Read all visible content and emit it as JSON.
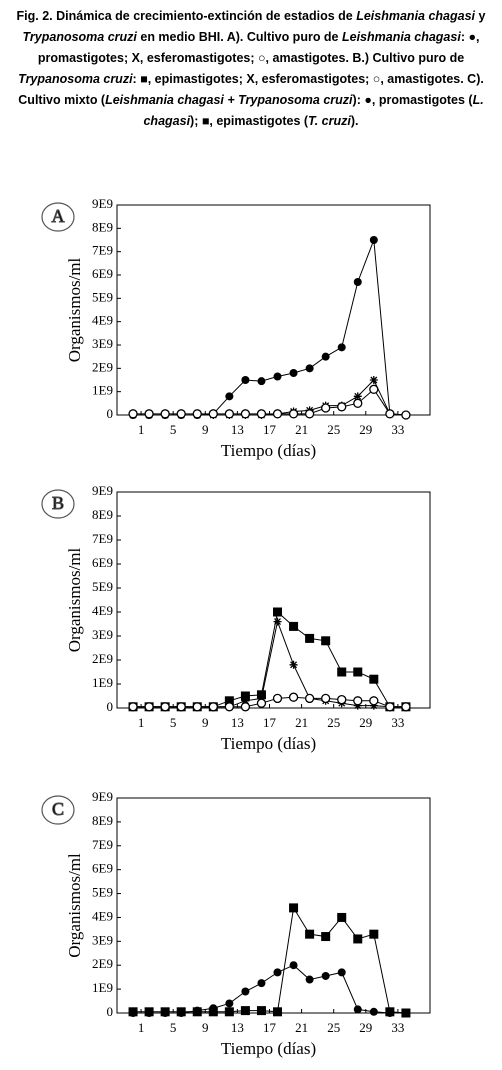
{
  "caption_parts": [
    {
      "text": "Fig. 2. Dinámica de crecimiento-extinción de estadios de ",
      "italic": false
    },
    {
      "text": "Leishmania chagasi",
      "italic": true
    },
    {
      "text": " y ",
      "italic": false
    },
    {
      "text": "Trypanosoma cruzi",
      "italic": true
    },
    {
      "text": " en medio BHI. A). Cultivo puro de ",
      "italic": false
    },
    {
      "text": "Leishmania chagasi",
      "italic": true
    },
    {
      "text": ": ●, promastigotes; X, esferomastigotes; ○, amastigotes. B.) Cultivo puro de ",
      "italic": false
    },
    {
      "text": "Trypanosoma cruzi",
      "italic": true
    },
    {
      "text": ": ■, epimastigotes; X, esferomastigotes; ○, amastigotes. C). Cultivo mixto (",
      "italic": false
    },
    {
      "text": "Leishmania chagasi + Trypanosoma cruzi",
      "italic": true
    },
    {
      "text": "): ●, promastigotes (",
      "italic": false
    },
    {
      "text": "L. chagasi",
      "italic": true
    },
    {
      "text": "); ■, epimastigotes (",
      "italic": false
    },
    {
      "text": "T. cruzi",
      "italic": true
    },
    {
      "text": ").",
      "italic": false
    }
  ],
  "chart_data": [
    {
      "type": "line",
      "panel": "A",
      "xlabel": "Tiempo (días)",
      "ylabel": "Organismos/ml",
      "x": [
        0,
        2,
        4,
        6,
        8,
        10,
        12,
        14,
        16,
        18,
        20,
        22,
        24,
        26,
        28,
        30,
        32,
        34
      ],
      "xlim": [
        -2,
        37
      ],
      "xticks": [
        1,
        5,
        9,
        13,
        17,
        21,
        25,
        29,
        33
      ],
      "ylim": [
        0,
        9000000000.0
      ],
      "yticks": [
        0,
        {
          "value": 1000000000.0,
          "label": "1E9"
        },
        {
          "value": 2000000000.0,
          "label": "2E9"
        },
        {
          "value": 3000000000.0,
          "label": "3E9"
        },
        {
          "value": 4000000000.0,
          "label": "4E9"
        },
        {
          "value": 5000000000.0,
          "label": "5E9"
        },
        {
          "value": 6000000000.0,
          "label": "6E9"
        },
        {
          "value": 7000000000.0,
          "label": "7E9"
        },
        {
          "value": 8000000000.0,
          "label": "8E9"
        },
        {
          "value": 9000000000.0,
          "label": "9E9"
        }
      ],
      "series": [
        {
          "name": "promastigotes",
          "marker": "filled-circle",
          "color": "#000000",
          "values": [
            0,
            0,
            0,
            0,
            0,
            50000000.0,
            800000000.0,
            1500000000.0,
            1450000000.0,
            1650000000.0,
            1800000000.0,
            2000000000.0,
            2500000000.0,
            2900000000.0,
            5700000000.0,
            7500000000.0,
            50000000.0,
            0
          ]
        },
        {
          "name": "esferomastigotes",
          "marker": "asterisk",
          "color": "#000000",
          "values": [
            0,
            0,
            0,
            0,
            0,
            0,
            0,
            0,
            0,
            50000000.0,
            150000000.0,
            200000000.0,
            400000000.0,
            400000000.0,
            800000000.0,
            1500000000.0,
            50000000.0,
            0
          ]
        },
        {
          "name": "amastigotes",
          "marker": "open-circle",
          "color": "#000000",
          "values": [
            50000000.0,
            50000000.0,
            50000000.0,
            50000000.0,
            50000000.0,
            50000000.0,
            50000000.0,
            50000000.0,
            50000000.0,
            50000000.0,
            50000000.0,
            50000000.0,
            300000000.0,
            350000000.0,
            500000000.0,
            1100000000.0,
            50000000.0,
            0
          ]
        }
      ]
    },
    {
      "type": "line",
      "panel": "B",
      "xlabel": "Tiempo (días)",
      "ylabel": "Organismos/ml",
      "x": [
        0,
        2,
        4,
        6,
        8,
        10,
        12,
        14,
        16,
        18,
        20,
        22,
        24,
        26,
        28,
        30,
        32,
        34
      ],
      "xlim": [
        -2,
        37
      ],
      "xticks": [
        1,
        5,
        9,
        13,
        17,
        21,
        25,
        29,
        33
      ],
      "ylim": [
        0,
        9000000000.0
      ],
      "yticks": [
        0,
        {
          "value": 1000000000.0,
          "label": "1E9"
        },
        {
          "value": 2000000000.0,
          "label": "2E9"
        },
        {
          "value": 3000000000.0,
          "label": "3E9"
        },
        {
          "value": 4000000000.0,
          "label": "4E9"
        },
        {
          "value": 5000000000.0,
          "label": "5E9"
        },
        {
          "value": 6000000000.0,
          "label": "6E9"
        },
        {
          "value": 7000000000.0,
          "label": "7E9"
        },
        {
          "value": 8000000000.0,
          "label": "8E9"
        },
        {
          "value": 9000000000.0,
          "label": "9E9"
        }
      ],
      "series": [
        {
          "name": "epimastigotes",
          "marker": "filled-square",
          "color": "#000000",
          "values": [
            50000000.0,
            50000000.0,
            50000000.0,
            50000000.0,
            50000000.0,
            50000000.0,
            300000000.0,
            500000000.0,
            550000000.0,
            4000000000.0,
            3400000000.0,
            2900000000.0,
            2800000000.0,
            1500000000.0,
            1500000000.0,
            1200000000.0,
            50000000.0,
            50000000.0
          ]
        },
        {
          "name": "esferomastigotes",
          "marker": "asterisk",
          "color": "#000000",
          "values": [
            50000000.0,
            50000000.0,
            50000000.0,
            50000000.0,
            50000000.0,
            50000000.0,
            50000000.0,
            300000000.0,
            400000000.0,
            3600000000.0,
            1800000000.0,
            400000000.0,
            300000000.0,
            200000000.0,
            100000000.0,
            100000000.0,
            50000000.0,
            50000000.0
          ]
        },
        {
          "name": "amastigotes",
          "marker": "open-circle",
          "color": "#000000",
          "values": [
            50000000.0,
            50000000.0,
            50000000.0,
            50000000.0,
            50000000.0,
            50000000.0,
            50000000.0,
            50000000.0,
            200000000.0,
            400000000.0,
            450000000.0,
            400000000.0,
            400000000.0,
            350000000.0,
            300000000.0,
            300000000.0,
            50000000.0,
            50000000.0
          ]
        }
      ]
    },
    {
      "type": "line",
      "panel": "C",
      "xlabel": "Tiempo (días)",
      "ylabel": "Organismos/ml",
      "x": [
        0,
        2,
        4,
        6,
        8,
        10,
        12,
        14,
        16,
        18,
        20,
        22,
        24,
        26,
        28,
        30,
        32,
        34
      ],
      "xlim": [
        -2,
        37
      ],
      "xticks": [
        1,
        5,
        9,
        13,
        17,
        21,
        25,
        29,
        33
      ],
      "ylim": [
        0,
        9000000000.0
      ],
      "yticks": [
        0,
        {
          "value": 1000000000.0,
          "label": "1E9"
        },
        {
          "value": 2000000000.0,
          "label": "2E9"
        },
        {
          "value": 3000000000.0,
          "label": "3E9"
        },
        {
          "value": 4000000000.0,
          "label": "4E9"
        },
        {
          "value": 5000000000.0,
          "label": "5E9"
        },
        {
          "value": 6000000000.0,
          "label": "6E9"
        },
        {
          "value": 7000000000.0,
          "label": "7E9"
        },
        {
          "value": 8000000000.0,
          "label": "8E9"
        },
        {
          "value": 9000000000.0,
          "label": "9E9"
        }
      ],
      "series": [
        {
          "name": "promastigotes",
          "marker": "filled-circle",
          "color": "#000000",
          "values": [
            0,
            0,
            0,
            0,
            100000000.0,
            200000000.0,
            400000000.0,
            900000000.0,
            1250000000.0,
            1700000000.0,
            2000000000.0,
            1400000000.0,
            1550000000.0,
            1700000000.0,
            150000000.0,
            50000000.0,
            0,
            0
          ]
        },
        {
          "name": "epimastigotes",
          "marker": "filled-square",
          "color": "#000000",
          "values": [
            50000000.0,
            50000000.0,
            50000000.0,
            50000000.0,
            50000000.0,
            50000000.0,
            50000000.0,
            100000000.0,
            100000000.0,
            50000000.0,
            4400000000.0,
            3300000000.0,
            3200000000.0,
            4000000000.0,
            3100000000.0,
            3300000000.0,
            50000000.0,
            0
          ]
        }
      ]
    }
  ]
}
